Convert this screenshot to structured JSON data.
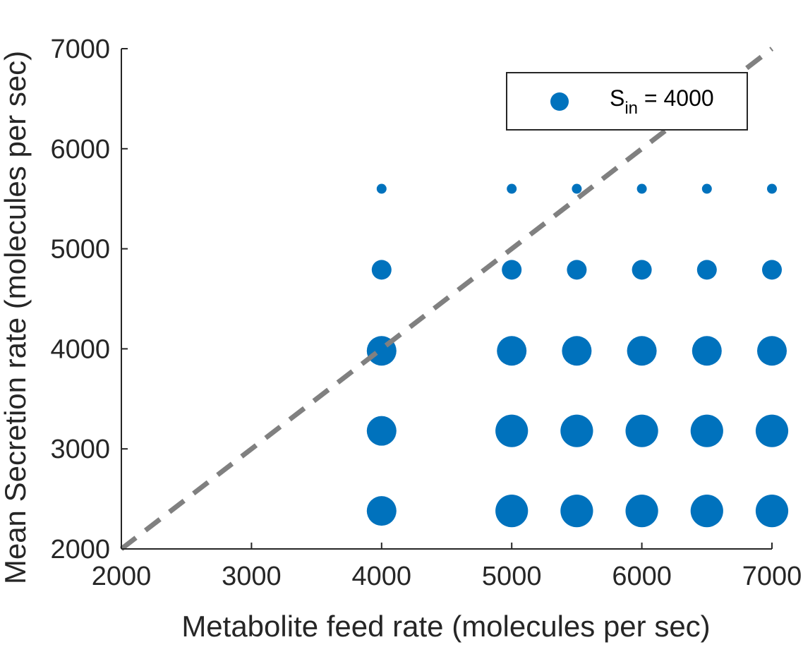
{
  "chart_data": {
    "type": "scatter",
    "xlabel": "Metabolite feed rate (molecules per sec)",
    "ylabel": "Mean Secretion rate (molecules per sec)",
    "xlim": [
      2000,
      7000
    ],
    "ylim": [
      2000,
      7000
    ],
    "xticks": [
      "2000",
      "3000",
      "4000",
      "5000",
      "6000",
      "7000"
    ],
    "yticks": [
      "2000",
      "3000",
      "4000",
      "5000",
      "6000",
      "7000"
    ],
    "grid": false,
    "legend_position": "top-right",
    "colors": {
      "marker": "#0072BD",
      "reference_line": "#808080",
      "axis": "#262626"
    },
    "series": [
      {
        "name_main": "S",
        "name_sub": "in",
        "name_rest": " = 4000",
        "marker": "filled-circle",
        "points": [
          {
            "x": 4000,
            "y": 5600,
            "size": 1
          },
          {
            "x": 5000,
            "y": 5600,
            "size": 1
          },
          {
            "x": 5500,
            "y": 5600,
            "size": 1
          },
          {
            "x": 6000,
            "y": 5600,
            "size": 1
          },
          {
            "x": 6500,
            "y": 5600,
            "size": 1
          },
          {
            "x": 7000,
            "y": 5600,
            "size": 1
          },
          {
            "x": 4000,
            "y": 4790,
            "size": 2
          },
          {
            "x": 5000,
            "y": 4790,
            "size": 2
          },
          {
            "x": 5500,
            "y": 4790,
            "size": 2
          },
          {
            "x": 6000,
            "y": 4790,
            "size": 2
          },
          {
            "x": 6500,
            "y": 4790,
            "size": 2
          },
          {
            "x": 7000,
            "y": 4790,
            "size": 2
          },
          {
            "x": 4000,
            "y": 3980,
            "size": 3
          },
          {
            "x": 5000,
            "y": 3980,
            "size": 3
          },
          {
            "x": 5500,
            "y": 3980,
            "size": 3
          },
          {
            "x": 6000,
            "y": 3980,
            "size": 3
          },
          {
            "x": 6500,
            "y": 3980,
            "size": 3
          },
          {
            "x": 7000,
            "y": 3980,
            "size": 3
          },
          {
            "x": 4000,
            "y": 3180,
            "size": 3
          },
          {
            "x": 5000,
            "y": 3180,
            "size": 3.3
          },
          {
            "x": 5500,
            "y": 3180,
            "size": 3.3
          },
          {
            "x": 6000,
            "y": 3180,
            "size": 3.3
          },
          {
            "x": 6500,
            "y": 3180,
            "size": 3.3
          },
          {
            "x": 7000,
            "y": 3180,
            "size": 3.3
          },
          {
            "x": 4000,
            "y": 2380,
            "size": 3
          },
          {
            "x": 5000,
            "y": 2380,
            "size": 3.3
          },
          {
            "x": 5500,
            "y": 2380,
            "size": 3.3
          },
          {
            "x": 6000,
            "y": 2380,
            "size": 3.3
          },
          {
            "x": 6500,
            "y": 2380,
            "size": 3.3
          },
          {
            "x": 7000,
            "y": 2380,
            "size": 3.3
          }
        ]
      }
    ],
    "reference_line": {
      "x": [
        2000,
        7000
      ],
      "y": [
        2000,
        7000
      ],
      "style": "dashed"
    }
  }
}
